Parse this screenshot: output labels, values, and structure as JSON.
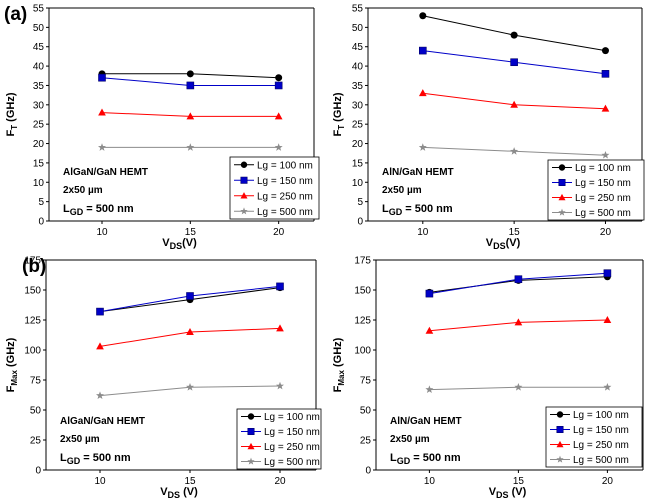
{
  "panel_labels": [
    "(a)",
    "(b)"
  ],
  "chart_data": [
    {
      "type": "line",
      "panel": "(a)",
      "ylabel": {
        "main": "F",
        "sub": "T",
        "rest": " (GHz)"
      },
      "xlabel": {
        "main": "V",
        "sub": "DS",
        "rest": "(V)"
      },
      "device": "AlGaN/GaN HEMT",
      "size": "2x50 µm",
      "lgd": {
        "main": "L",
        "sub": "GD",
        "rest": " = 500 nm"
      },
      "xlim": [
        7,
        22
      ],
      "ylim": [
        0,
        55
      ],
      "xticks": [
        10,
        15,
        20
      ],
      "yticks": [
        0,
        5,
        10,
        15,
        20,
        25,
        30,
        35,
        40,
        45,
        50,
        55
      ],
      "x": [
        10,
        15,
        20
      ],
      "series": [
        {
          "name": "Lg = 100 nm",
          "values": [
            38,
            38,
            37
          ]
        },
        {
          "name": "Lg = 150 nm",
          "values": [
            37,
            35,
            35
          ]
        },
        {
          "name": "Lg = 250 nm",
          "values": [
            28,
            27,
            27
          ]
        },
        {
          "name": "Lg = 500 nm",
          "values": [
            19,
            19,
            19
          ]
        }
      ]
    },
    {
      "type": "line",
      "panel": "(a)",
      "ylabel": {
        "main": "F",
        "sub": "T",
        "rest": " (GHz)"
      },
      "xlabel": {
        "main": "V",
        "sub": "DS",
        "rest": "(V)"
      },
      "device": "AlN/GaN HEMT",
      "size": "2x50 µm",
      "lgd": {
        "main": "L",
        "sub": "GD",
        "rest": " = 500 nm"
      },
      "xlim": [
        7,
        22
      ],
      "ylim": [
        0,
        55
      ],
      "xticks": [
        10,
        15,
        20
      ],
      "yticks": [
        0,
        5,
        10,
        15,
        20,
        25,
        30,
        35,
        40,
        45,
        50,
        55
      ],
      "x": [
        10,
        15,
        20
      ],
      "series": [
        {
          "name": "Lg = 100 nm",
          "values": [
            53,
            48,
            44
          ]
        },
        {
          "name": "Lg = 150 nm",
          "values": [
            44,
            41,
            38
          ]
        },
        {
          "name": "Lg = 250 nm",
          "values": [
            33,
            30,
            29
          ]
        },
        {
          "name": "Lg = 500 nm",
          "values": [
            19,
            18,
            17
          ]
        }
      ]
    },
    {
      "type": "line",
      "panel": "(b)",
      "ylabel": {
        "main": "F",
        "sub": "Max",
        "rest": " (GHz)"
      },
      "xlabel": {
        "main": "V",
        "sub": "DS",
        "rest": " (V)"
      },
      "device": "AlGaN/GaN HEMT",
      "size": "2x50 µm",
      "lgd": {
        "main": "L",
        "sub": "GD",
        "rest": " = 500 nm"
      },
      "xlim": [
        7,
        22
      ],
      "ylim": [
        0,
        175
      ],
      "xticks": [
        10,
        15,
        20
      ],
      "yticks": [
        0,
        25,
        50,
        75,
        100,
        125,
        150,
        175
      ],
      "x": [
        10,
        15,
        20
      ],
      "series": [
        {
          "name": "Lg = 100 nm",
          "values": [
            132,
            142,
            152
          ]
        },
        {
          "name": "Lg = 150 nm",
          "values": [
            132,
            145,
            153
          ]
        },
        {
          "name": "Lg = 250 nm",
          "values": [
            103,
            115,
            118
          ]
        },
        {
          "name": "Lg = 500 nm",
          "values": [
            62,
            69,
            70
          ]
        }
      ]
    },
    {
      "type": "line",
      "panel": "(b)",
      "ylabel": {
        "main": "F",
        "sub": "Max",
        "rest": " (GHz)"
      },
      "xlabel": {
        "main": "V",
        "sub": "DS",
        "rest": " (V)"
      },
      "device": "AlN/GaN HEMT",
      "size": "2x50 µm",
      "lgd": {
        "main": "L",
        "sub": "GD",
        "rest": " = 500 nm"
      },
      "xlim": [
        7,
        22
      ],
      "ylim": [
        0,
        175
      ],
      "xticks": [
        10,
        15,
        20
      ],
      "yticks": [
        0,
        25,
        50,
        75,
        100,
        125,
        150,
        175
      ],
      "x": [
        10,
        15,
        20
      ],
      "series": [
        {
          "name": "Lg = 100 nm",
          "values": [
            148,
            158,
            161
          ]
        },
        {
          "name": "Lg = 150 nm",
          "values": [
            147,
            159,
            164
          ]
        },
        {
          "name": "Lg = 250 nm",
          "values": [
            116,
            123,
            125
          ]
        },
        {
          "name": "Lg = 500 nm",
          "values": [
            67,
            69,
            69
          ]
        }
      ]
    }
  ],
  "series_style": [
    {
      "color": "#000000",
      "marker": "circle"
    },
    {
      "color": "#0000c8",
      "marker": "square"
    },
    {
      "color": "#ff0000",
      "marker": "triangle"
    },
    {
      "color": "#8c8c8c",
      "marker": "star"
    }
  ]
}
